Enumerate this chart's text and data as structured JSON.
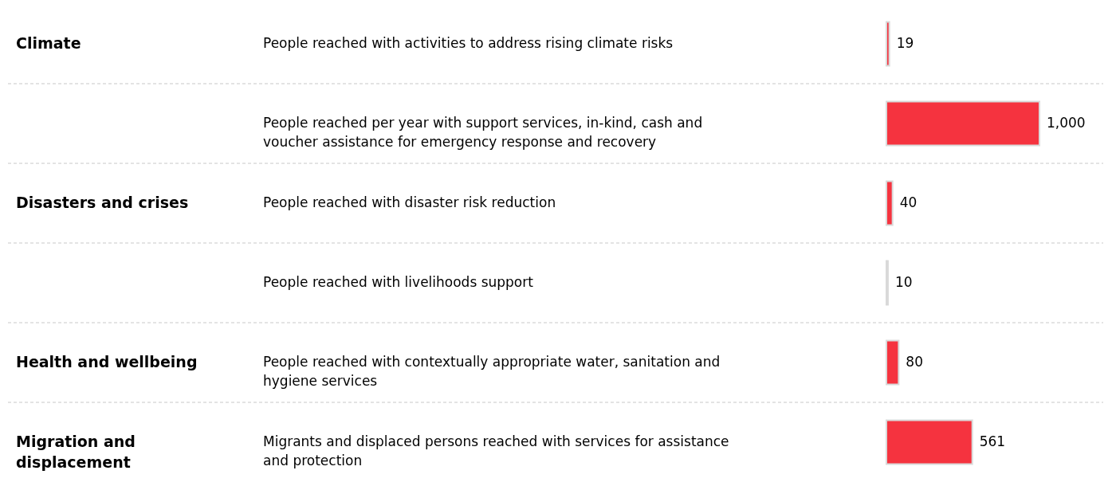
{
  "chart_data": {
    "type": "bar",
    "orientation": "horizontal",
    "categories": [
      "People reached with activities to address rising climate risks",
      "People reached per year with support services, in-kind, cash and voucher assistance for emergency response and recovery",
      "People reached with disaster risk reduction",
      "People reached with livelihoods support",
      "People reached with contextually appropriate water, sanitation and hygiene services",
      "Migrants and displaced persons reached with services for assistance and protection"
    ],
    "series": [
      {
        "color": "#f5333f",
        "values": [
          19,
          1000,
          40,
          10,
          80,
          561
        ],
        "value_labels": [
          "19",
          "1,000",
          "40",
          "10",
          "80",
          "561"
        ]
      }
    ],
    "grid": "y",
    "annotations": [
      "Climate",
      "Disasters and crises",
      "Health and wellbeing",
      "Migration and displacement"
    ]
  }
}
